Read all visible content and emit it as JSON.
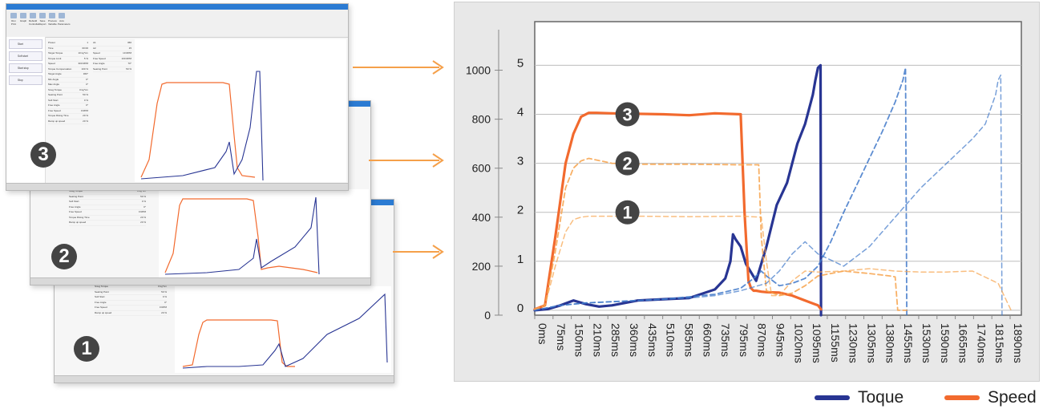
{
  "screenshots": [
    {
      "id": "3",
      "badge": "3",
      "ribbon": [
        "Run Print",
        "Graph",
        "Rebuild Controller",
        "Save Report",
        "Process Variable",
        "Axis Parameters"
      ],
      "side_items": [
        "Start",
        "Soft start",
        "Start stop",
        "Stop"
      ],
      "table_rows": [
        [
          "Preset",
          "1"
        ],
        [
          "Time",
          "00:00"
        ],
        [
          "Target Torque",
          "10 kg*cm"
        ],
        [
          "Torque Limit",
          "5 %"
        ],
        [
          "Speed",
          "300 RPM"
        ],
        [
          "Torque Compensation",
          "100 %"
        ],
        [
          "Target Angle",
          "360°"
        ],
        [
          "Min Angle",
          "0°"
        ],
        [
          "Max Angle",
          "0°"
        ],
        [
          "Snug Torque",
          "0 kg*cm"
        ],
        [
          "Seating Point",
          "50 %"
        ],
        [
          "Soft Start",
          "0 %"
        ],
        [
          "Free Angle",
          "0°"
        ],
        [
          "Free Speed",
          "0 RPM"
        ],
        [
          "Torque Rising Time",
          "20 %"
        ],
        [
          "Ramp up speed",
          "20 %"
        ]
      ],
      "analysis_rows": [
        [
          "A1",
          "360"
        ],
        [
          "A2",
          "15"
        ],
        [
          "Speed",
          "10 RPM"
        ],
        [
          "Free Speed",
          "100 RPM"
        ],
        [
          "Free Angle",
          "70°"
        ],
        [
          "Seating Point",
          "50 %"
        ]
      ]
    },
    {
      "id": "2",
      "badge": "2",
      "table_rows": [
        [
          "Snug Torque",
          "0 kg*cm"
        ],
        [
          "Seating Point",
          "50 %"
        ],
        [
          "Soft Start",
          "0 %"
        ],
        [
          "Free Angle",
          "0°"
        ],
        [
          "Free Speed",
          "0 RPM"
        ],
        [
          "Torque Rising Time",
          "20 %"
        ],
        [
          "Ramp up speed",
          "20 %"
        ]
      ]
    },
    {
      "id": "1",
      "badge": "1",
      "table_rows": [
        [
          "Snug Torque",
          "0 kg*cm"
        ],
        [
          "Seating Point",
          "50 %"
        ],
        [
          "Soft Start",
          "0 %"
        ],
        [
          "Free Angle",
          "0°"
        ],
        [
          "Free Speed",
          "0 RPM"
        ],
        [
          "Ramp up speed",
          "20 %"
        ]
      ]
    }
  ],
  "colors": {
    "torque": "#283593",
    "speed": "#f26a2e",
    "arrow": "#f5a04a",
    "badge": "#444444"
  },
  "chart_data": {
    "type": "line",
    "title": "",
    "y_left_ticks": [
      0,
      200,
      400,
      600,
      800,
      1000
    ],
    "y_left_lim": [
      0,
      1100
    ],
    "y_right_ticks": [
      0,
      1,
      2,
      3,
      4,
      5
    ],
    "y_right_lim": [
      -0.1,
      5.4
    ],
    "x_tick_labels": [
      "0ms",
      "75ms",
      "150ms",
      "210ms",
      "285ms",
      "360ms",
      "435ms",
      "510ms",
      "585ms",
      "660ms",
      "735ms",
      "795ms",
      "870ms",
      "945ms",
      "1020ms",
      "1095ms",
      "1155ms",
      "1230ms",
      "1305ms",
      "1380ms",
      "1455ms",
      "1530ms",
      "1590ms",
      "1665ms",
      "1740ms",
      "1815ms",
      "1890ms"
    ],
    "x_lim": [
      0,
      1890
    ],
    "grid": true,
    "annotations": [
      {
        "label": "3",
        "x": 360,
        "y": 4.0
      },
      {
        "label": "2",
        "x": 360,
        "y": 3.0
      },
      {
        "label": "1",
        "x": 360,
        "y": 2.0
      }
    ],
    "legend": [
      {
        "label": "Toque",
        "color": "#283593"
      },
      {
        "label": "Speed",
        "color": "#f26a2e"
      }
    ],
    "series": [
      {
        "name": "Toque",
        "curve": "3",
        "axis": "left",
        "style": "solid",
        "x": [
          0,
          50,
          100,
          150,
          200,
          250,
          300,
          400,
          500,
          600,
          700,
          740,
          760,
          770,
          780,
          800,
          820,
          860,
          900,
          940,
          980,
          1020,
          1050,
          1080,
          1090,
          1100,
          1110,
          1112
        ],
        "y": [
          20,
          25,
          40,
          60,
          45,
          35,
          40,
          60,
          65,
          70,
          105,
          150,
          220,
          330,
          310,
          280,
          210,
          140,
          280,
          450,
          540,
          700,
          780,
          900,
          960,
          1010,
          1020,
          0
        ]
      },
      {
        "name": "Speed",
        "curve": "3",
        "axis": "right",
        "style": "solid",
        "x": [
          0,
          40,
          80,
          120,
          150,
          180,
          210,
          240,
          300,
          500,
          600,
          700,
          800,
          815,
          830,
          840,
          850,
          860,
          880,
          900,
          950,
          1000,
          1050,
          1100,
          1112
        ],
        "y": [
          0.02,
          0.1,
          1.5,
          3.0,
          3.6,
          3.95,
          4.03,
          4.03,
          4.02,
          4.0,
          3.98,
          4.02,
          4.0,
          2.0,
          0.6,
          0.45,
          0.4,
          0.4,
          0.38,
          0.37,
          0.36,
          0.3,
          0.2,
          0.1,
          0.02
        ]
      },
      {
        "name": "Toque",
        "curve": "2",
        "axis": "left",
        "style": "dashed",
        "x": [
          0,
          100,
          200,
          300,
          400,
          500,
          600,
          700,
          800,
          850,
          880,
          900,
          950,
          1000,
          1050,
          1100,
          1150,
          1200,
          1250,
          1300,
          1350,
          1400,
          1430,
          1440,
          1445
        ],
        "y": [
          20,
          40,
          50,
          55,
          60,
          65,
          75,
          85,
          110,
          150,
          180,
          160,
          120,
          130,
          150,
          200,
          300,
          420,
          530,
          640,
          750,
          870,
          960,
          1010,
          0
        ]
      },
      {
        "name": "Speed",
        "curve": "2",
        "axis": "right",
        "style": "dashed",
        "x": [
          0,
          40,
          80,
          120,
          150,
          180,
          210,
          300,
          400,
          600,
          800,
          870,
          880,
          900,
          950,
          1000,
          1050,
          1100,
          1200,
          1300,
          1380,
          1400,
          1410,
          1445
        ],
        "y": [
          0.02,
          0.1,
          1.2,
          2.5,
          2.9,
          3.05,
          3.1,
          3.0,
          2.98,
          2.98,
          2.97,
          2.97,
          1.5,
          0.4,
          0.3,
          0.35,
          0.5,
          0.7,
          0.8,
          0.75,
          0.7,
          0.68,
          0.0,
          0.0
        ]
      },
      {
        "name": "Toque",
        "curve": "1",
        "axis": "left",
        "style": "dashed",
        "x": [
          0,
          100,
          200,
          300,
          400,
          500,
          600,
          700,
          800,
          900,
          950,
          1000,
          1050,
          1100,
          1200,
          1300,
          1400,
          1500,
          1600,
          1700,
          1750,
          1790,
          1800,
          1810,
          1815
        ],
        "y": [
          20,
          40,
          50,
          55,
          60,
          65,
          70,
          80,
          100,
          130,
          180,
          250,
          300,
          250,
          200,
          280,
          400,
          520,
          620,
          720,
          780,
          900,
          960,
          980,
          0
        ]
      },
      {
        "name": "Speed",
        "curve": "1",
        "axis": "right",
        "style": "dashed",
        "x": [
          0,
          40,
          80,
          120,
          150,
          180,
          210,
          300,
          400,
          600,
          800,
          880,
          900,
          920,
          950,
          1000,
          1050,
          1100,
          1200,
          1300,
          1400,
          1500,
          1600,
          1700,
          1800,
          1850
        ],
        "y": [
          0.02,
          0.1,
          0.9,
          1.6,
          1.85,
          1.9,
          1.92,
          1.92,
          1.92,
          1.91,
          1.92,
          1.9,
          1.0,
          0.3,
          0.3,
          0.6,
          0.8,
          0.78,
          0.8,
          0.85,
          0.8,
          0.78,
          0.78,
          0.8,
          0.55,
          0.0
        ]
      }
    ]
  }
}
